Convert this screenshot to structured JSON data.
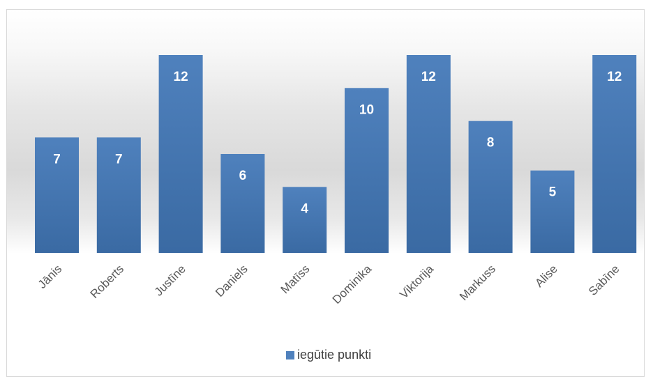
{
  "colors": {
    "bar": "#4f81bd",
    "bar_dark": "#3a6aa3",
    "value_label": "#ffffff",
    "tick_label": "#595959"
  },
  "chart_data": {
    "type": "bar",
    "title": "",
    "xlabel": "",
    "ylabel": "",
    "categories": [
      "Jānis",
      "Roberts",
      "Justīne",
      "Daniels",
      "Matīss",
      "Dominika",
      "Viktorija",
      "Markuss",
      "Alise",
      "Sabīne"
    ],
    "series": [
      {
        "name": "iegūtie punkti",
        "values": [
          7,
          7,
          12,
          6,
          4,
          10,
          12,
          8,
          5,
          12
        ]
      }
    ],
    "ylim": [
      0,
      12
    ],
    "grid": false,
    "legend_position": "bottom",
    "data_labels": true
  },
  "legend": {
    "label": "iegūtie punkti"
  }
}
